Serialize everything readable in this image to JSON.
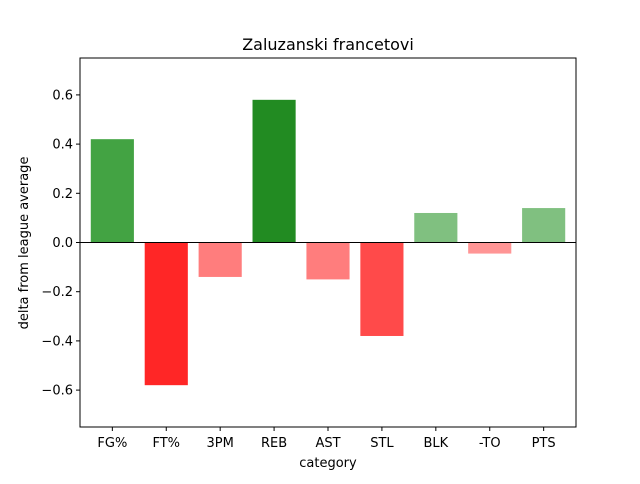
{
  "chart_data": {
    "type": "bar",
    "title": "Zaluzanski francetovi",
    "xlabel": "category",
    "ylabel": "delta from league average",
    "categories": [
      "FG%",
      "FT%",
      "3PM",
      "REB",
      "AST",
      "STL",
      "BLK",
      "-TO",
      "PTS"
    ],
    "values": [
      0.42,
      -0.58,
      -0.14,
      0.58,
      -0.15,
      -0.38,
      0.12,
      -0.045,
      0.14
    ],
    "colors": [
      "#43a343",
      "#ff2626",
      "#ff7d7d",
      "#228b22",
      "#ff7d7d",
      "#ff4a4a",
      "#80c080",
      "#ff9595",
      "#80c080"
    ],
    "ylim": [
      -0.75,
      0.75
    ],
    "yticks": [
      -0.6,
      -0.4,
      -0.2,
      0.0,
      0.2,
      0.4,
      0.6
    ],
    "ytick_labels": [
      "−0.6",
      "−0.4",
      "−0.2",
      "0.0",
      "0.2",
      "0.4",
      "0.6"
    ],
    "zero_line": true,
    "grid": false,
    "legend": "none"
  }
}
